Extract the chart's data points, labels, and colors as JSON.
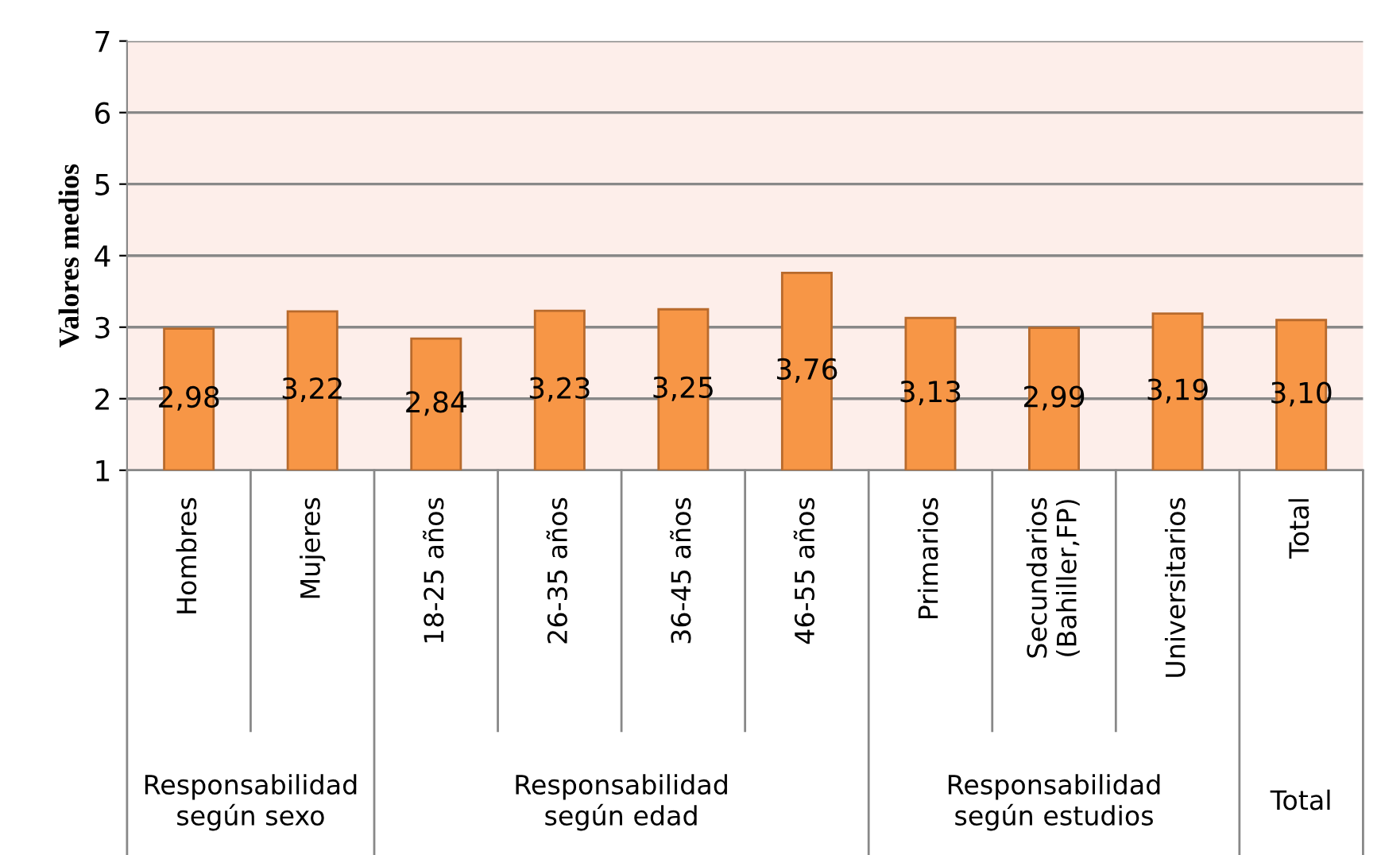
{
  "chart_data": {
    "type": "bar",
    "ylabel": "Valores medios",
    "categories": [
      "Hombres",
      "Mujeres",
      "18-25 años",
      "26-35 años",
      "36-45 años",
      "46-55 años",
      "Primarios",
      "Secundarios\n(Bahiller,FP)",
      "Universitarios",
      "Total"
    ],
    "values": [
      2.98,
      3.22,
      2.84,
      3.23,
      3.25,
      3.76,
      3.13,
      2.99,
      3.19,
      3.1
    ],
    "value_labels": [
      "2,98",
      "3,22",
      "2,84",
      "3,23",
      "3,25",
      "3,76",
      "3,13",
      "2,99",
      "3,19",
      "3,10"
    ],
    "color": "#f79646",
    "ylim": [
      1,
      7
    ],
    "yticks": [
      1,
      2,
      3,
      4,
      5,
      6,
      7
    ],
    "grid": "y",
    "legend": false,
    "annotations": [
      "Responsabilidad\nsegún sexo",
      "Responsabilidad\nsegún edad",
      "Responsabilidad\nsegún estudios",
      "Total"
    ]
  }
}
